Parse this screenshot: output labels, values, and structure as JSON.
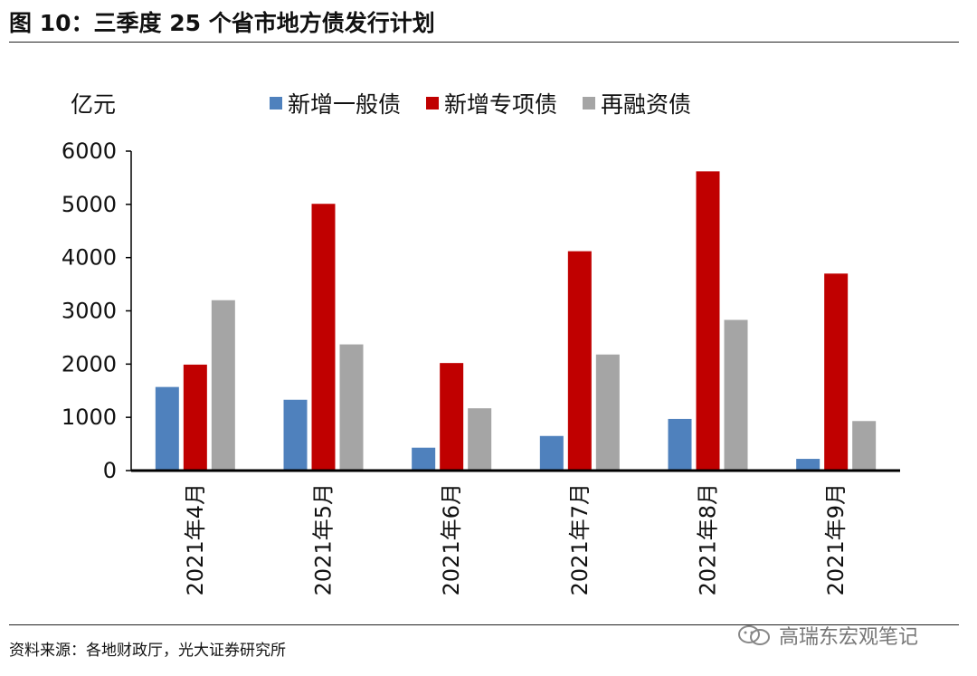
{
  "header": {
    "title": "图 10：三季度 25 个省市地方债发行计划"
  },
  "footer": {
    "source": "资料来源：各地财政厅，光大证券研究所",
    "watermark": "高瑞东宏观笔记"
  },
  "colors": {
    "general": "#4F81BD",
    "special": "#C00000",
    "refinancing": "#A5A5A5",
    "axis": "#000000"
  },
  "chart_data": {
    "type": "bar",
    "title": "三季度 25 个省市地方债发行计划",
    "ylabel": "亿元",
    "xlabel": "",
    "ylim": [
      0,
      6000
    ],
    "yticks": [
      0,
      1000,
      2000,
      3000,
      4000,
      5000,
      6000
    ],
    "legend_position": "top",
    "grid": false,
    "categories": [
      "2021年4月",
      "2021年5月",
      "2021年6月",
      "2021年7月",
      "2021年8月",
      "2021年9月"
    ],
    "series": [
      {
        "name": "新增一般债",
        "color": "#4F81BD",
        "values": [
          1570,
          1330,
          430,
          650,
          970,
          220
        ]
      },
      {
        "name": "新增专项债",
        "color": "#C00000",
        "values": [
          1990,
          5010,
          2020,
          4120,
          5620,
          3700
        ]
      },
      {
        "name": "再融资债",
        "color": "#A5A5A5",
        "values": [
          3200,
          2370,
          1170,
          2180,
          2830,
          930
        ]
      }
    ]
  }
}
